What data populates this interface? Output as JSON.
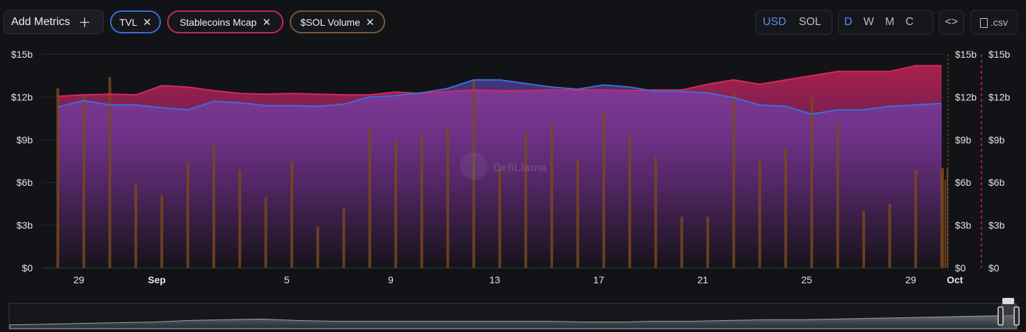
{
  "toolbar": {
    "add_metrics_label": "Add Metrics",
    "add_icon": "plus-icon",
    "metrics": [
      {
        "label": "TVL",
        "color": "#3a6fd8"
      },
      {
        "label": "Stablecoins Mcap",
        "color": "#c8285a"
      },
      {
        "label": "$SOL Volume",
        "color": "#7a5a34"
      }
    ],
    "close_icon": "close-icon",
    "currency": [
      "USD",
      "SOL"
    ],
    "currency_selected": "USD",
    "periods": [
      "D",
      "W",
      "M",
      "C"
    ],
    "period_selected": "D",
    "embed_label": "<>",
    "csv_label": ".csv"
  },
  "watermark": "DefiLlama",
  "chart_data": {
    "type": "line",
    "x_ticks": [
      "29",
      "Sep",
      "5",
      "9",
      "13",
      "17",
      "21",
      "25",
      "29",
      "Oct"
    ],
    "y_ticks": [
      "$0",
      "$3b",
      "$6b",
      "$9b",
      "$12b",
      "$15b"
    ],
    "right_y_ticks": [
      "$0",
      "$3b",
      "$6b",
      "$9b",
      "$12b",
      "$15b"
    ],
    "ylim": [
      0,
      15
    ],
    "series": [
      {
        "name": "Stablecoins Mcap",
        "color": "#d6285a",
        "values": [
          12.05,
          12.15,
          12.2,
          12.15,
          12.8,
          12.7,
          12.45,
          12.25,
          12.2,
          12.25,
          12.2,
          12.15,
          12.15,
          12.35,
          12.25,
          12.4,
          12.5,
          12.45,
          12.45,
          12.5,
          12.5,
          12.5,
          12.45,
          12.5,
          12.5,
          12.9,
          13.2,
          12.9,
          13.2,
          13.5,
          13.8,
          13.8,
          13.8,
          14.2,
          14.2
        ]
      },
      {
        "name": "TVL",
        "color": "#3a6fd8",
        "values": [
          11.3,
          11.75,
          11.45,
          11.45,
          11.25,
          11.1,
          11.7,
          11.6,
          11.4,
          11.4,
          11.35,
          11.5,
          12.0,
          12.1,
          12.3,
          12.6,
          13.2,
          13.2,
          12.95,
          12.7,
          12.55,
          12.85,
          12.7,
          12.4,
          12.4,
          12.3,
          11.95,
          11.45,
          11.35,
          10.8,
          11.1,
          11.1,
          11.35,
          11.45,
          11.55
        ]
      },
      {
        "name": "$SOL Volume",
        "type": "bar",
        "color": "#7a4a1c",
        "values": [
          12.6,
          12.2,
          13.4,
          5.9,
          5.1,
          7.4,
          8.8,
          6.9,
          5.0,
          7.5,
          2.9,
          4.2,
          9.9,
          9.0,
          9.5,
          10.0,
          13.2,
          7.0,
          9.6,
          10.1,
          7.6,
          10.9,
          9.5,
          7.8,
          3.6,
          3.6,
          12.3,
          7.6,
          8.4,
          12.0,
          10.2,
          4.0,
          4.5,
          6.9,
          7.0
        ]
      }
    ],
    "grid": true
  }
}
